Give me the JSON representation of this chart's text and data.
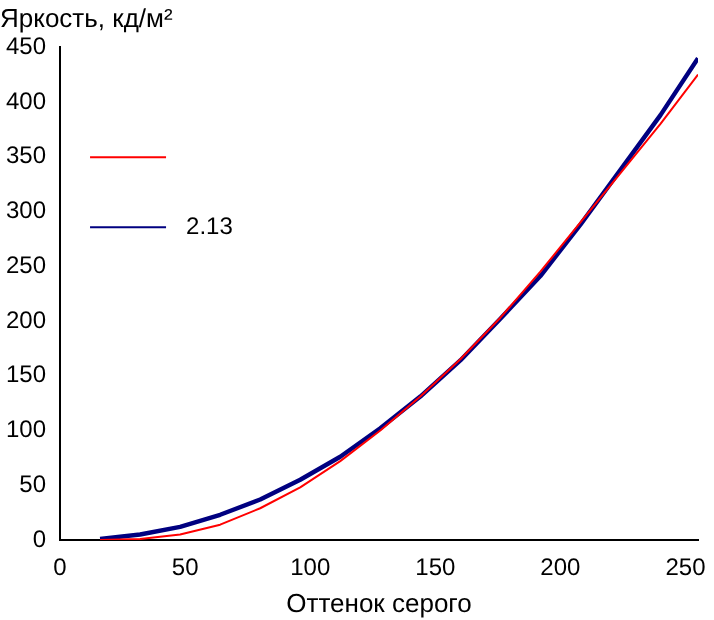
{
  "chart_data": {
    "type": "line",
    "ylabel": "Яркость, кд/м²",
    "xlabel": "Оттенок серого",
    "xlim": [
      0,
      255
    ],
    "xticks": [
      0,
      50,
      100,
      150,
      200,
      250
    ],
    "ylim": [
      0,
      450
    ],
    "yticks": [
      0,
      50,
      100,
      150,
      200,
      250,
      300,
      350,
      400,
      450
    ],
    "grid": false,
    "legend": "top left",
    "marker": "none",
    "line_style": "solid",
    "series": [
      {
        "color": "#ff0000",
        "x": [
          16,
          32,
          48,
          64,
          80,
          96,
          112,
          128,
          144,
          160,
          176,
          192,
          208,
          224,
          240,
          255
        ],
        "values": [
          0,
          1,
          5,
          14,
          29,
          48,
          72,
          100,
          131,
          165,
          203,
          245,
          290,
          335,
          380,
          425
        ]
      },
      {
        "name": "2.13",
        "color": "#000080",
        "x": [
          16,
          32,
          48,
          64,
          80,
          96,
          112,
          128,
          144,
          160,
          176,
          192,
          208,
          224,
          240,
          255
        ],
        "values": [
          1,
          5,
          12,
          23,
          37,
          55,
          76,
          102,
          131,
          164,
          202,
          241,
          288,
          338,
          388,
          440
        ]
      }
    ]
  }
}
